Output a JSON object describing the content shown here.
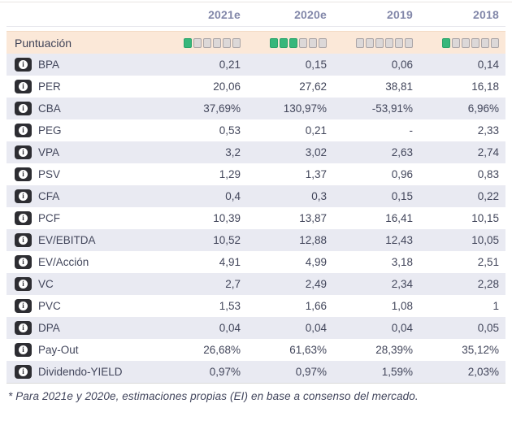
{
  "colors": {
    "header_text": "#8287a9",
    "body_text": "#42465b",
    "row_alt_bg": "#e9eaf2",
    "score_row_bg": "#fbe8d8",
    "score_on": "#36b77b",
    "score_off": "#dcd8d8",
    "info_icon_bg": "#2d2d32"
  },
  "header": {
    "years": [
      "2021e",
      "2020e",
      "2019",
      "2018"
    ]
  },
  "score_row": {
    "label": "Puntuación",
    "max": 6,
    "scores": [
      1,
      3,
      0,
      1
    ]
  },
  "info_icon_glyph": "i",
  "rows": [
    {
      "label": "BPA",
      "values": [
        "0,21",
        "0,15",
        "0,06",
        "0,14"
      ]
    },
    {
      "label": "PER",
      "values": [
        "20,06",
        "27,62",
        "38,81",
        "16,18"
      ]
    },
    {
      "label": "CBA",
      "values": [
        "37,69%",
        "130,97%",
        "-53,91%",
        "6,96%"
      ]
    },
    {
      "label": "PEG",
      "values": [
        "0,53",
        "0,21",
        "-",
        "2,33"
      ]
    },
    {
      "label": "VPA",
      "values": [
        "3,2",
        "3,02",
        "2,63",
        "2,74"
      ]
    },
    {
      "label": "PSV",
      "values": [
        "1,29",
        "1,37",
        "0,96",
        "0,83"
      ]
    },
    {
      "label": "CFA",
      "values": [
        "0,4",
        "0,3",
        "0,15",
        "0,22"
      ]
    },
    {
      "label": "PCF",
      "values": [
        "10,39",
        "13,87",
        "16,41",
        "10,15"
      ]
    },
    {
      "label": "EV/EBITDA",
      "values": [
        "10,52",
        "12,88",
        "12,43",
        "10,05"
      ]
    },
    {
      "label": "EV/Acción",
      "values": [
        "4,91",
        "4,99",
        "3,18",
        "2,51"
      ]
    },
    {
      "label": "VC",
      "values": [
        "2,7",
        "2,49",
        "2,34",
        "2,28"
      ]
    },
    {
      "label": "PVC",
      "values": [
        "1,53",
        "1,66",
        "1,08",
        "1"
      ]
    },
    {
      "label": "DPA",
      "values": [
        "0,04",
        "0,04",
        "0,04",
        "0,05"
      ]
    },
    {
      "label": "Pay-Out",
      "values": [
        "26,68%",
        "61,63%",
        "28,39%",
        "35,12%"
      ]
    },
    {
      "label": "Dividendo-YIELD",
      "values": [
        "0,97%",
        "0,97%",
        "1,59%",
        "2,03%"
      ]
    }
  ],
  "footnote": "* Para 2021e y 2020e, estimaciones propias (EI) en base a consenso del mercado."
}
